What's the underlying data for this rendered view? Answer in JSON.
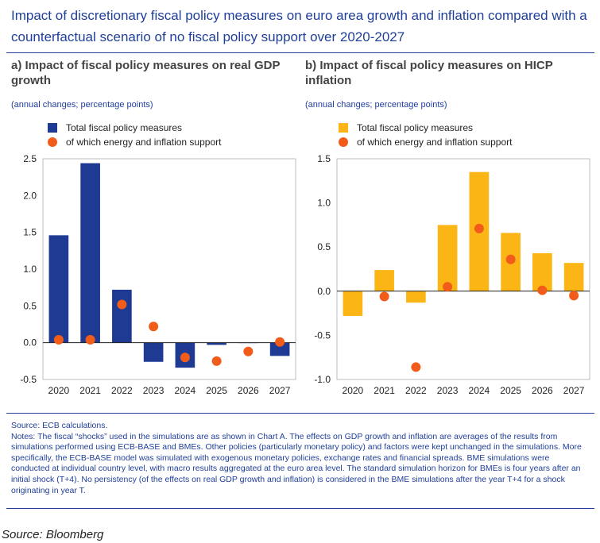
{
  "title": "Impact of discretionary fiscal policy measures on euro area growth and inflation compared with a counterfactual scenario of no fiscal policy support over 2020-2027",
  "colors": {
    "title": "#1f3f9a",
    "gdp_bar": "#1f3a93",
    "hicp_bar": "#fbb515",
    "dot": "#f25c1b"
  },
  "chart_data": [
    {
      "type": "bar",
      "title": "a) Impact of fiscal policy measures on real GDP growth",
      "subtitle": "(annual changes; percentage points)",
      "categories": [
        "2020",
        "2021",
        "2022",
        "2023",
        "2024",
        "2025",
        "2026",
        "2027"
      ],
      "series": [
        {
          "name": "Total fiscal policy measures",
          "mark": "bar",
          "color": "#1f3a93",
          "values": [
            1.46,
            2.44,
            0.72,
            -0.26,
            -0.34,
            -0.03,
            0.0,
            -0.18
          ]
        },
        {
          "name": "of which energy and inflation support",
          "mark": "dot",
          "color": "#f25c1b",
          "values": [
            0.04,
            0.04,
            0.52,
            0.22,
            -0.2,
            -0.25,
            -0.12,
            0.01
          ]
        }
      ],
      "yticks": [
        "2.5",
        "2.0",
        "1.5",
        "1.0",
        "0.5",
        "0.0",
        "-0.5"
      ],
      "ylim": [
        -0.5,
        2.5
      ],
      "grid": false
    },
    {
      "type": "bar",
      "title": "b) Impact of fiscal policy measures on HICP inflation",
      "subtitle": "(annual changes; percentage points)",
      "categories": [
        "2020",
        "2021",
        "2022",
        "2023",
        "2024",
        "2025",
        "2026",
        "2027"
      ],
      "series": [
        {
          "name": "Total fiscal policy measures",
          "mark": "bar",
          "color": "#fbb515",
          "values": [
            -0.28,
            0.24,
            -0.13,
            0.75,
            1.35,
            0.66,
            0.43,
            0.32
          ]
        },
        {
          "name": "of which energy and inflation support",
          "mark": "dot",
          "color": "#f25c1b",
          "values": null
        }
      ],
      "dot_values": [
        null,
        -0.06,
        -0.86,
        0.05,
        0.71,
        0.36,
        0.01,
        -0.05
      ],
      "yticks": [
        "1.5",
        "1.0",
        "0.5",
        "0.0",
        "-0.5",
        "-1.0"
      ],
      "ylim": [
        -1.0,
        1.5
      ],
      "grid": false
    }
  ],
  "footer": {
    "source": "Source: ECB calculations.",
    "notes": "Notes: The fiscal “shocks” used in the simulations are as shown in Chart A. The effects on GDP growth and inflation are averages of the results from simulations performed using ECB-BASE and BMEs. Other policies (particularly monetary policy) and factors were kept unchanged in the simulations. More specifically, the ECB-BASE model was simulated with exogenous monetary policies, exchange rates and financial spreads. BME simulations were conducted at individual country level, with macro results aggregated at the euro area level. The standard simulation horizon for BMEs is four years after an initial shock (T+4). No persistency (of the effects on real GDP growth and inflation) is considered in the BME simulations after the year T+4 for a shock originating in year T."
  },
  "bottom_source": "Source: Bloomberg"
}
